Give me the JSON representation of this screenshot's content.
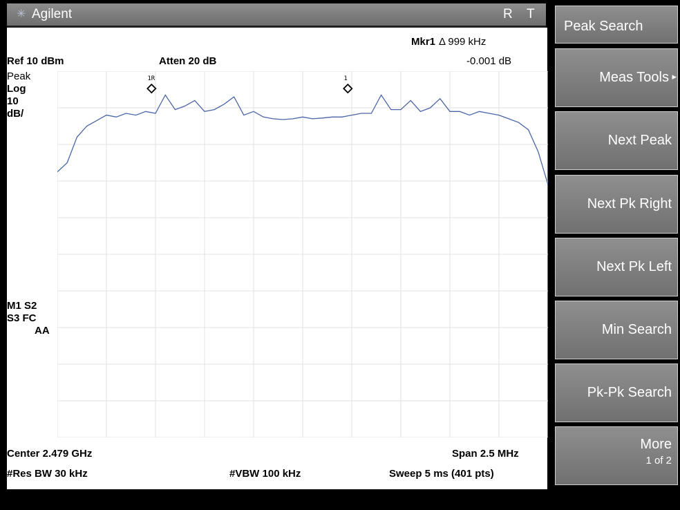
{
  "title_bar": {
    "brand": "Agilent",
    "status_r": "R",
    "status_t": "T"
  },
  "display": {
    "marker_readout_label": "Mkr1",
    "marker_readout_delta": "Δ 999 kHz",
    "marker_readout_amplitude": "-0.001 dB",
    "ref_level": "Ref 10 dBm",
    "attenuation": "Atten 20 dB",
    "detector": "Peak",
    "scale_type": "Log",
    "scale_per_div_value": "10",
    "scale_per_div_unit": "dB/",
    "annotations": [
      "M1  S2",
      "S3  FC",
      "AA"
    ],
    "center_freq": "Center 2.479 GHz",
    "span": "Span 2.5 MHz",
    "res_bw": "#Res BW 30 kHz",
    "vbw": "#VBW 100 kHz",
    "sweep": "Sweep 5 ms (401 pts)",
    "trace_color": "#4a64a8"
  },
  "chart_data": {
    "type": "line",
    "ref_level_dbm": 10,
    "db_per_div": 10,
    "center_ghz": 2.479,
    "span_mhz": 2.5,
    "grid": true,
    "xlim_mhz": [
      2477.75,
      2480.25
    ],
    "ylim_dbm": [
      -90,
      10
    ],
    "series": [
      {
        "x": [
          2477.75,
          2477.8,
          2477.85,
          2477.9,
          2477.95,
          2478.0,
          2478.05,
          2478.1,
          2478.15,
          2478.2,
          2478.25,
          2478.3,
          2478.35,
          2478.4,
          2478.45,
          2478.5,
          2478.55,
          2478.6,
          2478.65,
          2478.7,
          2478.75,
          2478.8,
          2478.85,
          2478.9,
          2478.95,
          2479.0,
          2479.05,
          2479.1,
          2479.15,
          2479.2,
          2479.25,
          2479.3,
          2479.35,
          2479.4,
          2479.45,
          2479.5,
          2479.55,
          2479.6,
          2479.65,
          2479.7,
          2479.75,
          2479.8,
          2479.85,
          2479.9,
          2479.95,
          2480.0,
          2480.05,
          2480.1,
          2480.15,
          2480.2,
          2480.25
        ],
        "y": [
          -17.5,
          -15,
          -8,
          -5,
          -3.5,
          -2,
          -2.5,
          -1.5,
          -2,
          -1,
          -1.5,
          3.5,
          -0.5,
          0.5,
          2,
          -1,
          -0.5,
          1,
          3,
          -2,
          -1,
          -2.5,
          -3,
          -3.2,
          -3,
          -2.5,
          -3,
          -2.8,
          -2.5,
          -2.5,
          -2,
          -1.5,
          -1.5,
          3.5,
          -0.5,
          -0.5,
          2,
          -1,
          0,
          2.5,
          -1,
          -1,
          -2,
          -1,
          -1.5,
          -2,
          -3,
          -4,
          -6,
          -12,
          -21
        ]
      }
    ],
    "markers": [
      {
        "label": "1R",
        "x": 2478.23,
        "y": 4.5
      },
      {
        "label": "1",
        "x": 2479.23,
        "y": 4.5
      }
    ]
  },
  "softkeys": [
    {
      "label": "Peak Search"
    },
    {
      "label": "Meas Tools",
      "arrow": "▸"
    },
    {
      "label": "Next Peak"
    },
    {
      "label": "Next Pk Right"
    },
    {
      "label": "Next Pk Left"
    },
    {
      "label": "Min Search"
    },
    {
      "label": "Pk-Pk Search"
    },
    {
      "label": "More",
      "sub": "1 of 2"
    }
  ],
  "message_bar": ""
}
